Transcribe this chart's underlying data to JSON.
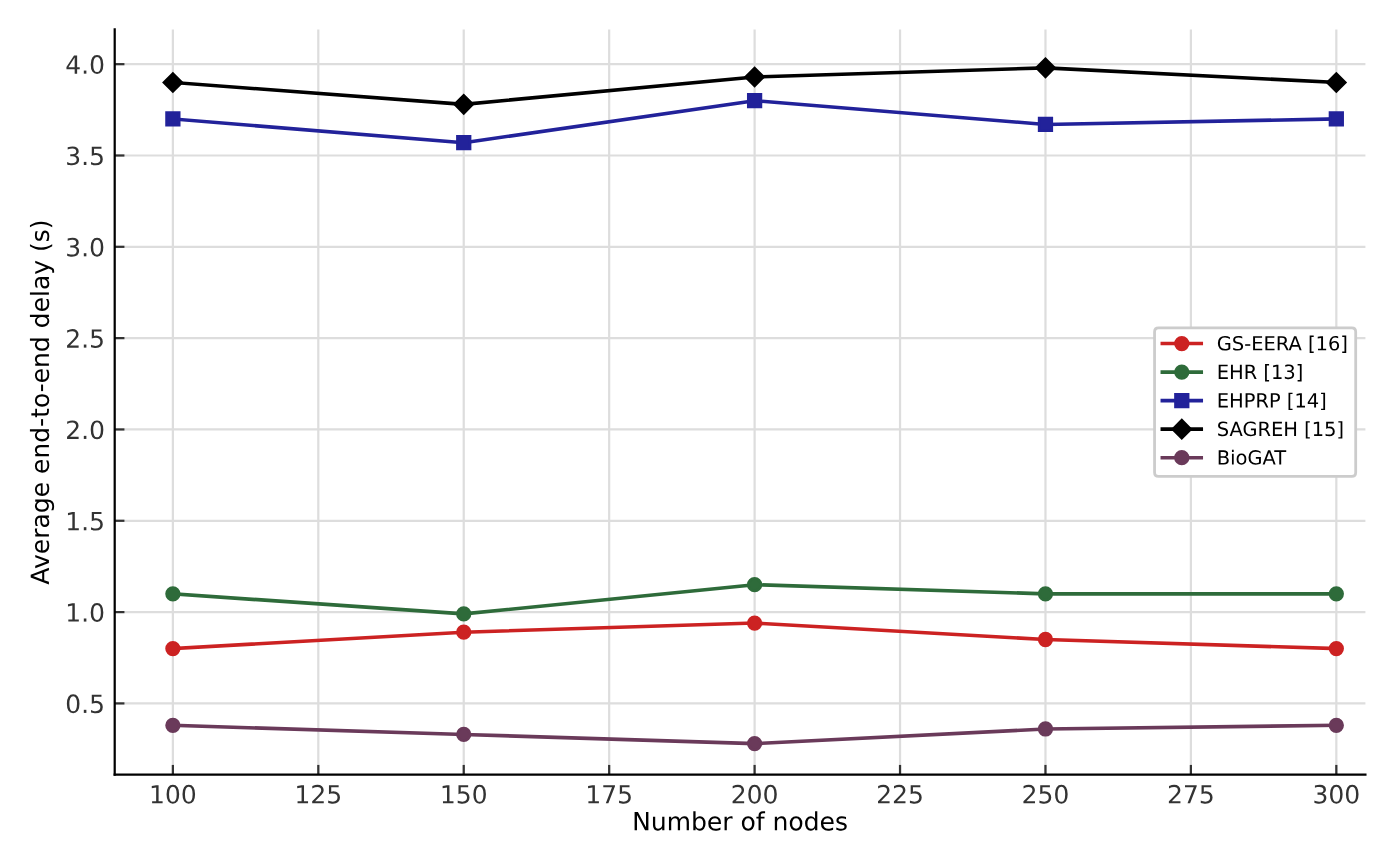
{
  "chart_data": {
    "type": "line",
    "xlabel": "Number of nodes",
    "ylabel": "Average end-to-end delay (s)",
    "x": [
      100,
      150,
      200,
      250,
      300
    ],
    "series": [
      {
        "name": "GS-EERA [16]",
        "color": "#cc2222",
        "marker": "circle",
        "values": [
          0.8,
          0.89,
          0.94,
          0.85,
          0.8
        ]
      },
      {
        "name": "EHR [13]",
        "color": "#2e6b3a",
        "marker": "circle",
        "values": [
          1.1,
          0.99,
          1.15,
          1.1,
          1.1
        ]
      },
      {
        "name": "EHPRP [14]",
        "color": "#22229a",
        "marker": "square",
        "values": [
          3.7,
          3.57,
          3.8,
          3.67,
          3.7
        ]
      },
      {
        "name": "SAGREH [15]",
        "color": "#000000",
        "marker": "diamond",
        "values": [
          3.9,
          3.78,
          3.93,
          3.98,
          3.9
        ]
      },
      {
        "name": "BioGAT",
        "color": "#6a3a5a",
        "marker": "circle",
        "values": [
          0.38,
          0.33,
          0.28,
          0.36,
          0.38
        ]
      }
    ],
    "xlim": [
      90,
      305
    ],
    "ylim": [
      0.11,
      4.19
    ],
    "xticks": [
      100,
      125,
      150,
      175,
      200,
      225,
      250,
      275,
      300
    ],
    "yticks": [
      0.5,
      {
        "value": 1,
        "label": "1.0"
      },
      1.5,
      {
        "value": 2,
        "label": "2.0"
      },
      2.5,
      {
        "value": 3,
        "label": "3.0"
      },
      3.5,
      {
        "value": 4,
        "label": "4.0"
      }
    ],
    "grid": true,
    "legend": "right",
    "line_style": "solid"
  }
}
